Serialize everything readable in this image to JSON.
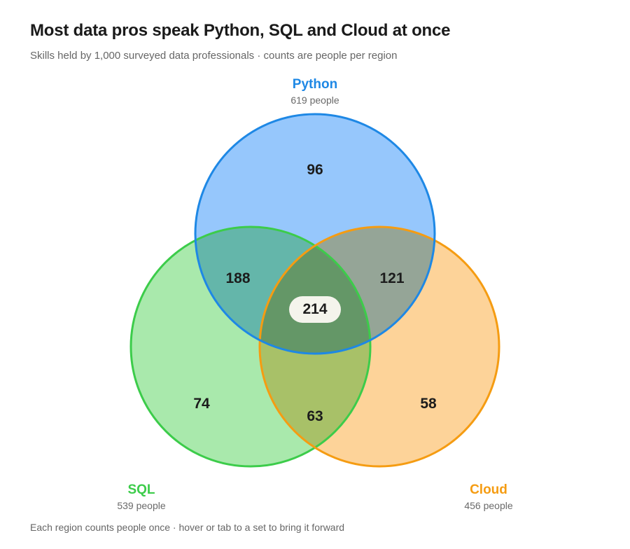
{
  "header": {
    "title": "Most data pros speak Python, SQL and Cloud at once",
    "subtitle": "Skills held by 1,000 surveyed data professionals · counts are people per region"
  },
  "footer": {
    "note": "Each region counts people once · hover or tab to a set to bring it forward"
  },
  "sets": {
    "python": {
      "name": "Python",
      "count_label": "619 people",
      "total": 619,
      "color": "#1e88e5",
      "fill": "#90c4fc"
    },
    "sql": {
      "name": "SQL",
      "count_label": "539 people",
      "total": 539,
      "color": "#3ccc4a",
      "fill": "#a4e8a8"
    },
    "cloud": {
      "name": "Cloud",
      "count_label": "456 people",
      "total": 456,
      "color": "#f59c12",
      "fill": "#fdd194"
    }
  },
  "regions": {
    "python_only": "96",
    "sql_only": "74",
    "cloud_only": "58",
    "python_sql": "188",
    "python_cloud": "121",
    "sql_cloud": "63",
    "all_three": "214"
  }
}
